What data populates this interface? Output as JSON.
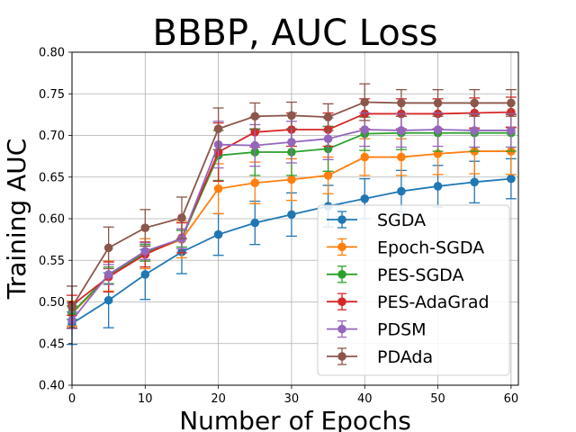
{
  "chart_data": {
    "type": "line",
    "title": "BBBP, AUC Loss",
    "xlabel": "Number of Epochs",
    "ylabel": "Training AUC",
    "xlim": [
      0,
      61
    ],
    "ylim": [
      0.4,
      0.8
    ],
    "xticks": [
      "0",
      "10",
      "20",
      "30",
      "40",
      "50",
      "60"
    ],
    "yticks": [
      "0.40",
      "0.45",
      "0.50",
      "0.55",
      "0.60",
      "0.65",
      "0.70",
      "0.75",
      "0.80"
    ],
    "grid": true,
    "legend_position": "lower-right",
    "x": [
      0,
      5,
      10,
      15,
      20,
      25,
      30,
      35,
      40,
      45,
      50,
      55,
      60
    ],
    "series": [
      {
        "name": "SGDA",
        "color": "#1f77b4",
        "values": [
          0.474,
          0.502,
          0.533,
          0.56,
          0.581,
          0.595,
          0.605,
          0.615,
          0.624,
          0.633,
          0.639,
          0.644,
          0.648
        ],
        "errors": [
          0.025,
          0.033,
          0.03,
          0.026,
          0.025,
          0.026,
          0.026,
          0.025,
          0.024,
          0.025,
          0.025,
          0.025,
          0.024
        ]
      },
      {
        "name": "Epoch-SGDA",
        "color": "#ff7f0e",
        "values": [
          0.486,
          0.531,
          0.558,
          0.575,
          0.636,
          0.643,
          0.647,
          0.652,
          0.674,
          0.674,
          0.678,
          0.681,
          0.681
        ],
        "errors": [
          0.015,
          0.018,
          0.018,
          0.022,
          0.03,
          0.025,
          0.025,
          0.022,
          0.022,
          0.022,
          0.025,
          0.027,
          0.028
        ]
      },
      {
        "name": "PES-SGDA",
        "color": "#2ca02c",
        "values": [
          0.487,
          0.532,
          0.559,
          0.576,
          0.676,
          0.68,
          0.68,
          0.684,
          0.702,
          0.703,
          0.703,
          0.703,
          0.703
        ],
        "errors": [
          0.008,
          0.01,
          0.01,
          0.01,
          0.03,
          0.028,
          0.028,
          0.027,
          0.02,
          0.02,
          0.022,
          0.022,
          0.022
        ]
      },
      {
        "name": "PES-AdaGrad",
        "color": "#d62728",
        "values": [
          0.496,
          0.53,
          0.557,
          0.577,
          0.68,
          0.704,
          0.707,
          0.707,
          0.726,
          0.726,
          0.726,
          0.727,
          0.728
        ],
        "errors": [
          0.012,
          0.018,
          0.015,
          0.018,
          0.035,
          0.018,
          0.02,
          0.02,
          0.018,
          0.018,
          0.018,
          0.018,
          0.018
        ]
      },
      {
        "name": "PDSM",
        "color": "#9467bd",
        "values": [
          0.478,
          0.533,
          0.561,
          0.576,
          0.689,
          0.688,
          0.692,
          0.696,
          0.707,
          0.706,
          0.707,
          0.706,
          0.706
        ],
        "errors": [
          0.01,
          0.012,
          0.01,
          0.012,
          0.028,
          0.025,
          0.025,
          0.025,
          0.02,
          0.02,
          0.02,
          0.02,
          0.02
        ]
      },
      {
        "name": "PDAda",
        "color": "#8c564b",
        "values": [
          0.494,
          0.565,
          0.589,
          0.601,
          0.708,
          0.723,
          0.724,
          0.722,
          0.74,
          0.739,
          0.739,
          0.739,
          0.739
        ],
        "errors": [
          0.025,
          0.025,
          0.022,
          0.025,
          0.025,
          0.016,
          0.016,
          0.016,
          0.022,
          0.016,
          0.016,
          0.016,
          0.016
        ]
      }
    ]
  }
}
